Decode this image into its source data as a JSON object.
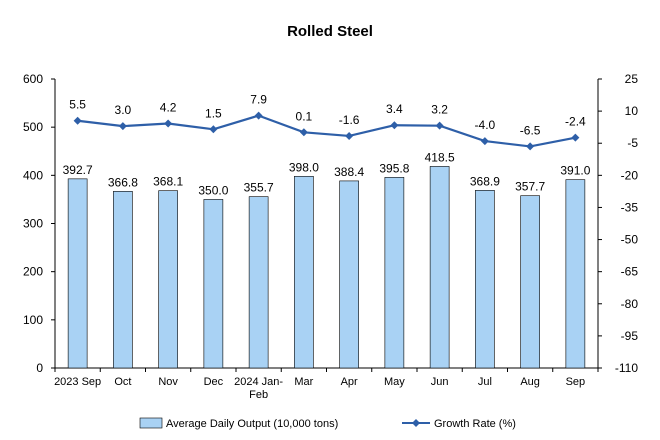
{
  "chart_data": {
    "type": "bar",
    "title": "Rolled Steel",
    "categories": [
      "2023 Sep",
      "Oct",
      "Nov",
      "Dec",
      "2024 Jan-Feb",
      "Mar",
      "Apr",
      "May",
      "Jun",
      "Jul",
      "Aug",
      "Sep"
    ],
    "series": [
      {
        "name": "Average Daily Output (10,000 tons)",
        "type": "bar",
        "axis": "left",
        "color": "#a9d2f4",
        "values": [
          392.7,
          366.8,
          368.1,
          350.0,
          355.7,
          398.0,
          388.4,
          395.8,
          418.5,
          368.9,
          357.7,
          391.0
        ],
        "labels": [
          "392.7",
          "366.8",
          "368.1",
          "350.0",
          "355.7",
          "398.0",
          "388.4",
          "395.8",
          "418.5",
          "368.9",
          "357.7",
          "391.0"
        ]
      },
      {
        "name": "Growth Rate (%)",
        "type": "line",
        "axis": "right",
        "color": "#2e5fa8",
        "values": [
          5.5,
          3.0,
          4.2,
          1.5,
          7.9,
          0.1,
          -1.6,
          3.4,
          3.2,
          -4.0,
          -6.5,
          -2.4
        ],
        "labels": [
          "5.5",
          "3.0",
          "4.2",
          "1.5",
          "7.9",
          "0.1",
          "-1.6",
          "3.4",
          "3.2",
          "-4.0",
          "-6.5",
          "-2.4"
        ]
      }
    ],
    "y_left": {
      "min": 0,
      "max": 600,
      "ticks": [
        "0",
        "100",
        "200",
        "300",
        "400",
        "500",
        "600"
      ]
    },
    "y_right": {
      "min": -110,
      "max": 25,
      "ticks": [
        "25",
        "10",
        "-5",
        "-20",
        "-35",
        "-50",
        "-65",
        "-80",
        "-95",
        "-110"
      ]
    },
    "legend_position": "bottom",
    "grid": false
  }
}
